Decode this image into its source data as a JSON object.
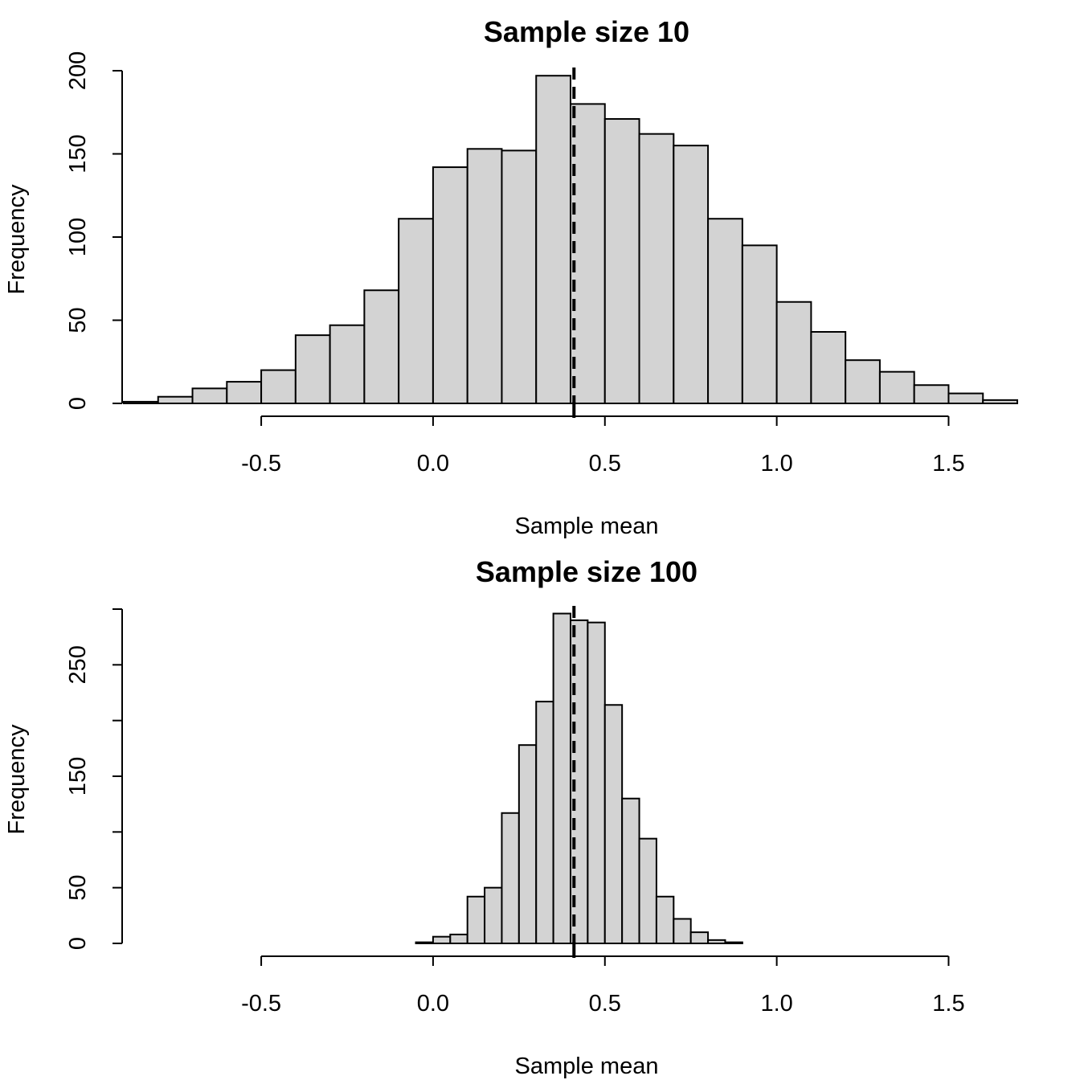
{
  "chart_data": [
    {
      "type": "bar",
      "title": "Sample size 10",
      "xlabel": "Sample mean",
      "ylabel": "Frequency",
      "bin_width": 0.1,
      "bin_starts": [
        -0.9,
        -0.8,
        -0.7,
        -0.6,
        -0.5,
        -0.4,
        -0.3,
        -0.2,
        -0.1,
        0.0,
        0.1,
        0.2,
        0.3,
        0.4,
        0.5,
        0.6,
        0.7,
        0.8,
        0.9,
        1.0,
        1.1,
        1.2,
        1.3,
        1.4,
        1.5,
        1.6
      ],
      "values": [
        1,
        4,
        9,
        13,
        20,
        41,
        47,
        68,
        111,
        142,
        153,
        152,
        197,
        180,
        171,
        162,
        155,
        111,
        95,
        61,
        43,
        26,
        19,
        11,
        6,
        2
      ],
      "mean": 0.41,
      "xlim": [
        -0.9,
        1.7
      ],
      "ylim": [
        0,
        200
      ],
      "x_ticks": [
        -0.5,
        0.0,
        0.5,
        1.0,
        1.5
      ],
      "x_tick_labels": [
        "-0.5",
        "0.0",
        "0.5",
        "1.0",
        "1.5"
      ],
      "y_ticks": [
        0,
        50,
        100,
        150,
        200
      ],
      "y_tick_labels": [
        "0",
        "50",
        "100",
        "150",
        "200"
      ],
      "colors": {
        "bar_fill": "#d3d3d3",
        "bar_stroke": "#000000"
      }
    },
    {
      "type": "bar",
      "title": "Sample size 100",
      "xlabel": "Sample mean",
      "ylabel": "Frequency",
      "bin_width": 0.05,
      "bin_starts": [
        -0.05,
        0.0,
        0.05,
        0.1,
        0.15,
        0.2,
        0.25,
        0.3,
        0.35,
        0.4,
        0.45,
        0.5,
        0.55,
        0.6,
        0.65,
        0.7,
        0.75,
        0.8,
        0.85
      ],
      "values": [
        1,
        6,
        8,
        42,
        50,
        117,
        178,
        217,
        296,
        290,
        288,
        214,
        130,
        94,
        42,
        22,
        10,
        3,
        1
      ],
      "mean": 0.41,
      "xlim": [
        -0.9,
        1.7
      ],
      "ylim": [
        0,
        300
      ],
      "x_ticks": [
        -0.5,
        0.0,
        0.5,
        1.0,
        1.5
      ],
      "x_tick_labels": [
        "-0.5",
        "0.0",
        "0.5",
        "1.0",
        "1.5"
      ],
      "y_ticks": [
        0,
        50,
        100,
        150,
        200,
        250,
        300
      ],
      "y_tick_labels": [
        "0",
        "50",
        "",
        "150",
        "",
        "250",
        ""
      ],
      "colors": {
        "bar_fill": "#d3d3d3",
        "bar_stroke": "#000000"
      }
    }
  ]
}
